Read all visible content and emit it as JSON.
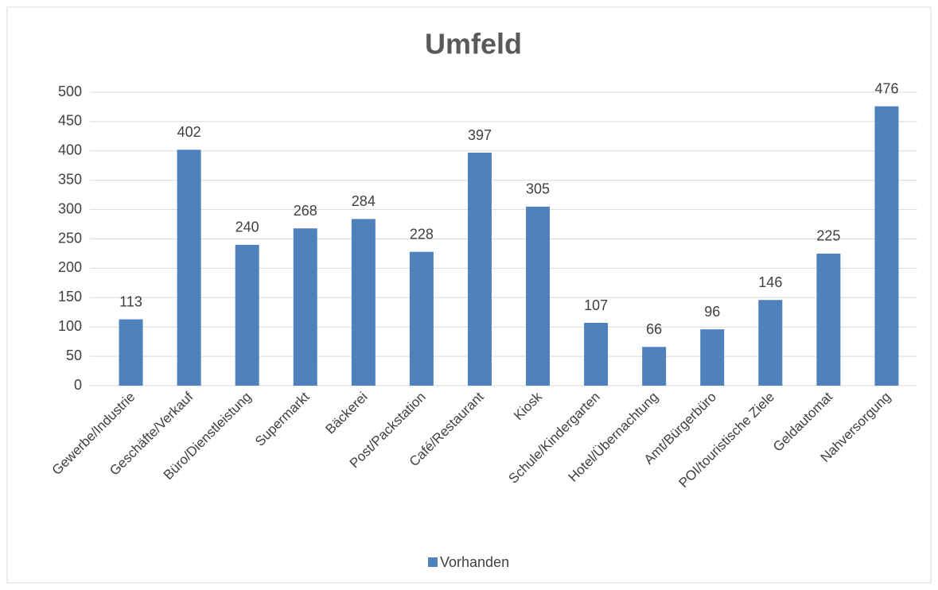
{
  "chart_data": {
    "type": "bar",
    "title": "Umfeld",
    "categories": [
      "Gewerbe/Industrie",
      "Geschäfte/Verkauf",
      "Büro/Dienstleistung",
      "Supermarkt",
      "Bäckerei",
      "Post/Packstation",
      "Café/Restaurant",
      "Kiosk",
      "Schule/Kindergarten",
      "Hotel/Übernachtung",
      "Amt/Bürgerbüro",
      "POI/touristische Ziele",
      "Geldautomat",
      "Nahversorgung"
    ],
    "series": [
      {
        "name": "Vorhanden",
        "color": "#4f81bd",
        "values": [
          113,
          402,
          240,
          268,
          284,
          228,
          397,
          305,
          107,
          66,
          96,
          146,
          225,
          476
        ]
      }
    ],
    "ylim": [
      0,
      500
    ],
    "yticks": [
      0,
      50,
      100,
      150,
      200,
      250,
      300,
      350,
      400,
      450,
      500
    ],
    "grid": true,
    "legend": "bottom"
  }
}
